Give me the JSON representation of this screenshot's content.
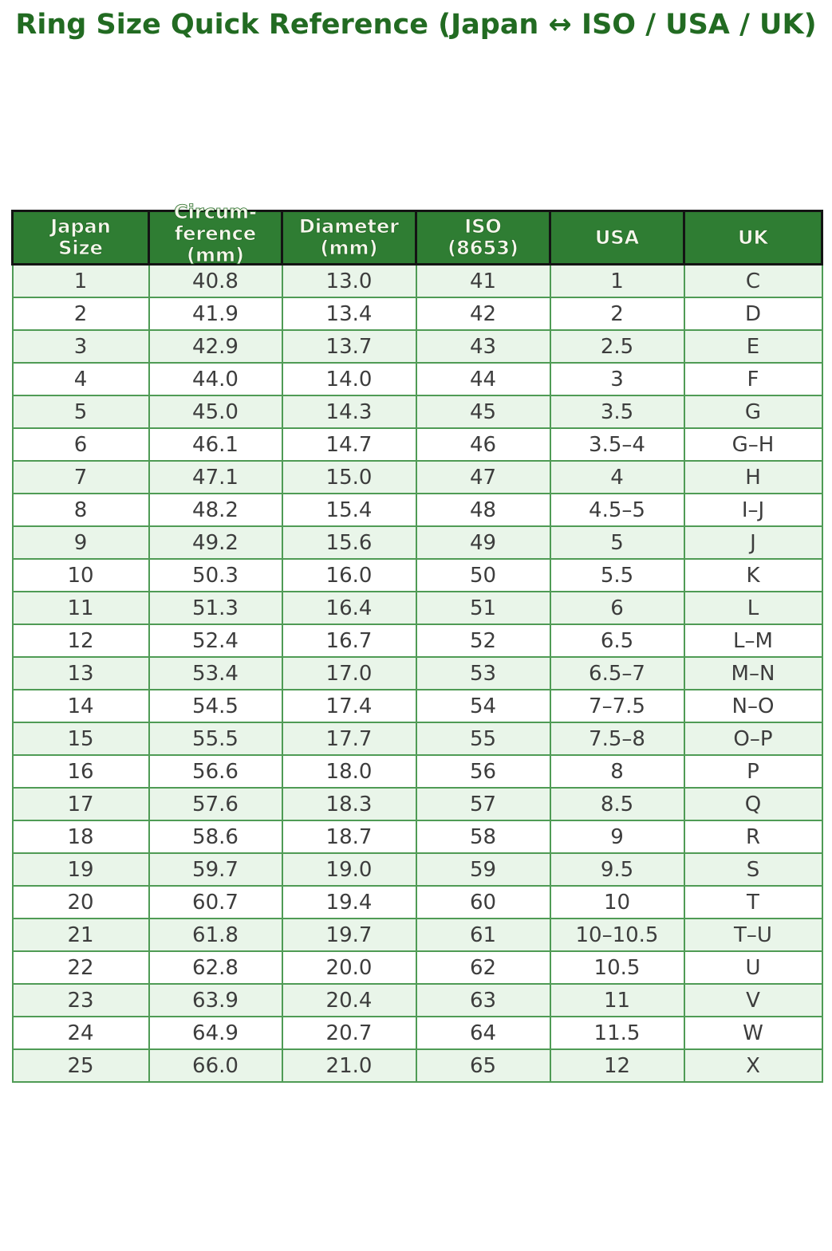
{
  "title": "Ring Size Quick Reference (Japan ↔ ISO / USA / UK)",
  "chart_data": {
    "type": "table",
    "title": "Ring Size Quick Reference (Japan ↔ ISO / USA / UK)",
    "columns": [
      "Japan\nSize",
      "Circum-\nference\n(mm)",
      "Diameter\n(mm)",
      "ISO\n(8653)",
      "USA",
      "UK"
    ],
    "rows": [
      [
        "1",
        "40.8",
        "13.0",
        "41",
        "1",
        "C"
      ],
      [
        "2",
        "41.9",
        "13.4",
        "42",
        "2",
        "D"
      ],
      [
        "3",
        "42.9",
        "13.7",
        "43",
        "2.5",
        "E"
      ],
      [
        "4",
        "44.0",
        "14.0",
        "44",
        "3",
        "F"
      ],
      [
        "5",
        "45.0",
        "14.3",
        "45",
        "3.5",
        "G"
      ],
      [
        "6",
        "46.1",
        "14.7",
        "46",
        "3.5–4",
        "G–H"
      ],
      [
        "7",
        "47.1",
        "15.0",
        "47",
        "4",
        "H"
      ],
      [
        "8",
        "48.2",
        "15.4",
        "48",
        "4.5–5",
        "I–J"
      ],
      [
        "9",
        "49.2",
        "15.6",
        "49",
        "5",
        "J"
      ],
      [
        "10",
        "50.3",
        "16.0",
        "50",
        "5.5",
        "K"
      ],
      [
        "11",
        "51.3",
        "16.4",
        "51",
        "6",
        "L"
      ],
      [
        "12",
        "52.4",
        "16.7",
        "52",
        "6.5",
        "L–M"
      ],
      [
        "13",
        "53.4",
        "17.0",
        "53",
        "6.5–7",
        "M–N"
      ],
      [
        "14",
        "54.5",
        "17.4",
        "54",
        "7–7.5",
        "N–O"
      ],
      [
        "15",
        "55.5",
        "17.7",
        "55",
        "7.5–8",
        "O–P"
      ],
      [
        "16",
        "56.6",
        "18.0",
        "56",
        "8",
        "P"
      ],
      [
        "17",
        "57.6",
        "18.3",
        "57",
        "8.5",
        "Q"
      ],
      [
        "18",
        "58.6",
        "18.7",
        "58",
        "9",
        "R"
      ],
      [
        "19",
        "59.7",
        "19.0",
        "59",
        "9.5",
        "S"
      ],
      [
        "20",
        "60.7",
        "19.4",
        "60",
        "10",
        "T"
      ],
      [
        "21",
        "61.8",
        "19.7",
        "61",
        "10–10.5",
        "T–U"
      ],
      [
        "22",
        "62.8",
        "20.0",
        "62",
        "10.5",
        "U"
      ],
      [
        "23",
        "63.9",
        "20.4",
        "63",
        "11",
        "V"
      ],
      [
        "24",
        "64.9",
        "20.7",
        "64",
        "11.5",
        "W"
      ],
      [
        "25",
        "66.0",
        "21.0",
        "65",
        "12",
        "X"
      ]
    ],
    "layout": {
      "header_position": "top",
      "zebra_striping": true,
      "first_stripe": "light-green"
    }
  },
  "colors": {
    "title_text": "#226b22",
    "header_bg": "#2f7d33",
    "header_text": "#f6f6ec",
    "header_border": "#141414",
    "cell_border": "#4f9b55",
    "row_alt_bg": "#e9f5e9",
    "row_bg": "#ffffff",
    "cell_text": "#3d3d3d",
    "page_bg": "#ffffff"
  }
}
